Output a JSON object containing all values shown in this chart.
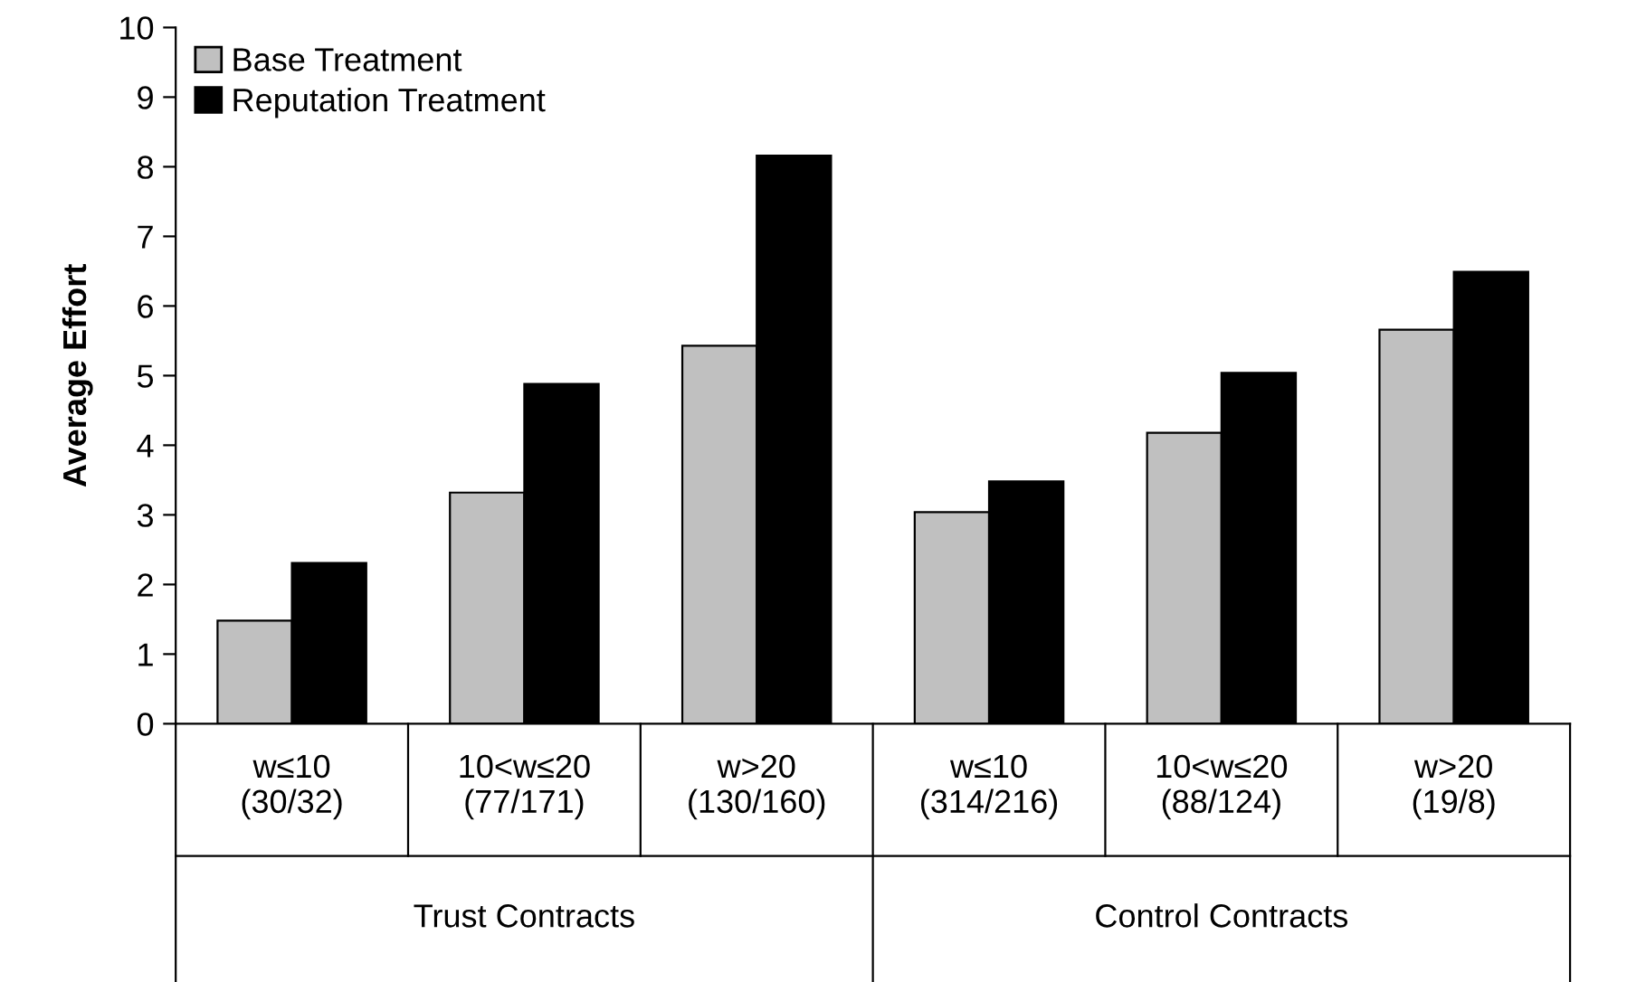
{
  "chart_data": {
    "type": "bar",
    "ylabel": "Average Effort",
    "categories": [
      "w≤10\n(30/32)",
      "10<w≤20\n(77/171)",
      "w>20\n(130/160)",
      "w≤10\n(314/216)",
      "10<w≤20\n(88/124)",
      "w>20\n(19/8)"
    ],
    "series": [
      {
        "name": "Base Treatment",
        "color": "#c0c0c0",
        "values": [
          1.48,
          3.32,
          5.43,
          3.04,
          4.18,
          5.66
        ]
      },
      {
        "name": "Reputation Treatment",
        "color": "#000000",
        "values": [
          2.31,
          4.88,
          8.16,
          3.48,
          5.04,
          6.49
        ]
      }
    ],
    "annotations": [
      "Trust Contracts",
      "Control Contracts"
    ],
    "ylim": [
      0,
      10
    ],
    "yticks": [
      0,
      1,
      2,
      3,
      4,
      5,
      6,
      7,
      8,
      9,
      10
    ],
    "grid": false,
    "legend": "top left"
  }
}
